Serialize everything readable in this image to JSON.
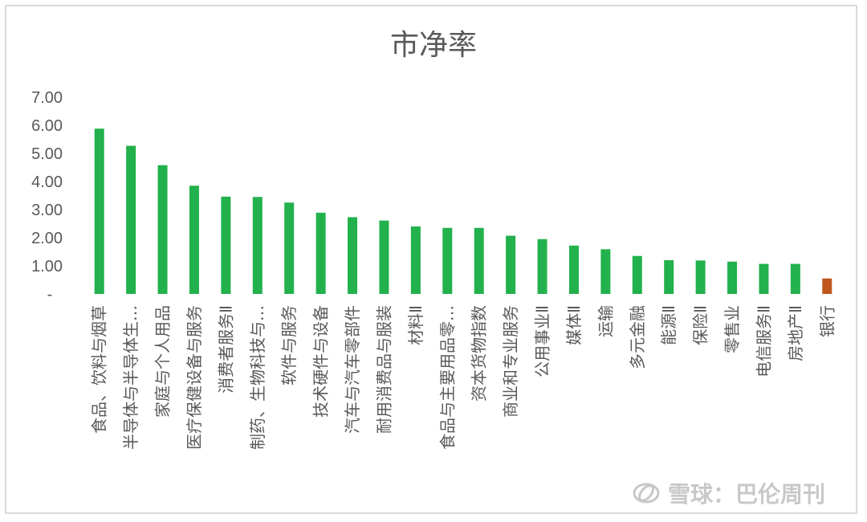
{
  "chart_data": {
    "type": "bar",
    "title": "市净率",
    "xlabel": "",
    "ylabel": "",
    "ylim": [
      0,
      7
    ],
    "yticks": [
      "-",
      "1.00",
      "2.00",
      "3.00",
      "4.00",
      "5.00",
      "6.00",
      "7.00"
    ],
    "grid": false,
    "legend": "none",
    "categories": [
      "食品、饮料与烟草",
      "半导体与半导体生…",
      "家庭与个人用品",
      "医疗保健设备与服务",
      "消费者服务Ⅱ",
      "制药、生物科技与…",
      "软件与服务",
      "技术硬件与设备",
      "汽车与汽车零部件",
      "耐用消费品与服装",
      "材料Ⅱ",
      "食品与主要用品零…",
      "资本货物指数",
      "商业和专业服务",
      "公用事业Ⅱ",
      "媒体Ⅱ",
      "运输",
      "多元金融",
      "能源Ⅱ",
      "保险Ⅱ",
      "零售业",
      "电信服务Ⅱ",
      "房地产Ⅱ",
      "银行"
    ],
    "values": [
      5.88,
      5.27,
      4.58,
      3.85,
      3.46,
      3.45,
      3.25,
      2.89,
      2.73,
      2.61,
      2.4,
      2.35,
      2.35,
      2.07,
      1.95,
      1.72,
      1.59,
      1.35,
      1.2,
      1.19,
      1.15,
      1.07,
      1.07,
      0.55
    ],
    "colors": {
      "default": "#22b14c",
      "highlight": "#c0581e"
    },
    "highlight_index": 23
  },
  "watermark": {
    "text": "雪球：巴伦周刊"
  }
}
